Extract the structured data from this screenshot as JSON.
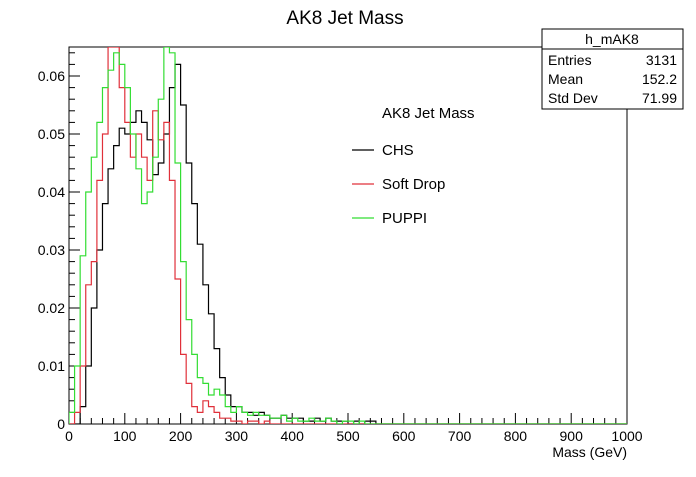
{
  "chart_data": {
    "type": "histogram",
    "title": "AK8 Jet Mass",
    "xlabel": "Mass (GeV)",
    "ylabel": "",
    "xlim": [
      0,
      1000
    ],
    "ylim": [
      0,
      0.065
    ],
    "x_ticks": [
      "0",
      "100",
      "200",
      "300",
      "400",
      "500",
      "600",
      "700",
      "800",
      "900",
      "1000"
    ],
    "y_ticks": [
      "0",
      "0.01",
      "0.02",
      "0.03",
      "0.04",
      "0.05",
      "0.06"
    ],
    "grid": false,
    "legend": {
      "placement": "top-right",
      "title": "AK8 Jet Mass",
      "entries": [
        "CHS",
        "Soft Drop",
        "PUPPI"
      ]
    },
    "stats_box": {
      "title": "h_mAK8",
      "rows": [
        {
          "label": "Entries",
          "value": "3131"
        },
        {
          "label": "Mean",
          "value": "152.2"
        },
        {
          "label": "Std Dev",
          "value": "71.99"
        }
      ]
    },
    "bin_width": 10,
    "series": [
      {
        "name": "CHS",
        "color": "#000000",
        "bin_start": 0,
        "values": [
          0.0,
          0.0,
          0.003,
          0.01,
          0.02,
          0.03,
          0.038,
          0.044,
          0.048,
          0.051,
          0.05,
          0.052,
          0.054,
          0.052,
          0.049,
          0.043,
          0.045,
          0.05,
          0.058,
          0.062,
          0.055,
          0.045,
          0.038,
          0.031,
          0.024,
          0.019,
          0.013,
          0.008,
          0.005,
          0.003,
          0.003,
          0.002,
          0.002,
          0.0015,
          0.002,
          0.0015,
          0.001,
          0.001,
          0.0015,
          0.001,
          0.001,
          0.001,
          0.0005,
          0.0005,
          0.001,
          0.0005,
          0.001,
          0.0005,
          0.0005,
          0.0005,
          0.0,
          0.0005,
          0.0,
          0.0005,
          0.0005,
          0.0,
          0.0,
          0.0,
          0.0,
          0.0,
          0.0,
          0.0,
          0.0,
          0.0,
          0.0,
          0.0,
          0.0,
          0.0,
          0.0,
          0.0,
          0.0,
          0.0,
          0.0,
          0.0,
          0.0,
          0.0,
          0.0,
          0.0,
          0.0,
          0.0,
          0.0,
          0.0,
          0.0,
          0.0,
          0.0,
          0.0,
          0.0,
          0.0,
          0.0,
          0.0,
          0.0,
          0.0,
          0.0,
          0.0,
          0.0,
          0.0,
          0.0,
          0.0,
          0.0,
          0.0
        ]
      },
      {
        "name": "Soft Drop",
        "color": "#e0303a",
        "bin_start": 0,
        "values": [
          0.0,
          0.002,
          0.01,
          0.024,
          0.028,
          0.042,
          0.05,
          0.065,
          0.065,
          0.058,
          0.052,
          0.046,
          0.05,
          0.046,
          0.042,
          0.054,
          0.049,
          0.052,
          0.042,
          0.025,
          0.012,
          0.007,
          0.003,
          0.002,
          0.004,
          0.003,
          0.002,
          0.001,
          0.001,
          0.0005,
          0.0005,
          0.0,
          0.0005,
          0.0005,
          0.0,
          0.0005,
          0.0,
          0.0,
          0.0,
          0.0,
          0.0,
          0.0,
          0.0,
          0.0,
          0.0,
          0.0,
          0.0,
          0.0,
          0.0,
          0.0,
          0.0,
          0.0,
          0.0,
          0.0,
          0.0,
          0.0,
          0.0,
          0.0,
          0.0,
          0.0,
          0.0,
          0.0,
          0.0,
          0.0,
          0.0,
          0.0,
          0.0,
          0.0,
          0.0,
          0.0,
          0.0,
          0.0,
          0.0,
          0.0,
          0.0,
          0.0,
          0.0,
          0.0,
          0.0,
          0.0,
          0.0,
          0.0,
          0.0,
          0.0,
          0.0,
          0.0,
          0.0,
          0.0,
          0.0,
          0.0,
          0.0,
          0.0,
          0.0,
          0.0,
          0.0,
          0.0,
          0.0,
          0.0,
          0.0,
          0.0,
          0.0
        ]
      },
      {
        "name": "PUPPI",
        "color": "#33dd33",
        "bin_start": 0,
        "values": [
          0.002,
          0.01,
          0.029,
          0.04,
          0.046,
          0.052,
          0.058,
          0.061,
          0.064,
          0.062,
          0.058,
          0.05,
          0.044,
          0.038,
          0.04,
          0.046,
          0.056,
          0.065,
          0.064,
          0.045,
          0.028,
          0.018,
          0.012,
          0.008,
          0.007,
          0.005,
          0.006,
          0.005,
          0.003,
          0.002,
          0.003,
          0.002,
          0.0015,
          0.002,
          0.0015,
          0.0015,
          0.001,
          0.001,
          0.0015,
          0.0005,
          0.001,
          0.0005,
          0.0005,
          0.001,
          0.0005,
          0.0005,
          0.001,
          0.0005,
          0.0,
          0.0005,
          0.0005,
          0.0,
          0.0005,
          0.0,
          0.0,
          0.0,
          0.0,
          0.0,
          0.0,
          0.0,
          0.0,
          0.0,
          0.0,
          0.0,
          0.0,
          0.0,
          0.0,
          0.0,
          0.0,
          0.0,
          0.0,
          0.0,
          0.0,
          0.0,
          0.0,
          0.0,
          0.0,
          0.0,
          0.0,
          0.0,
          0.0,
          0.0,
          0.0,
          0.0,
          0.0,
          0.0,
          0.0,
          0.0,
          0.0,
          0.0,
          0.0,
          0.0,
          0.0,
          0.0,
          0.0,
          0.0,
          0.0,
          0.0,
          0.0,
          0.0,
          0.0
        ]
      }
    ]
  }
}
